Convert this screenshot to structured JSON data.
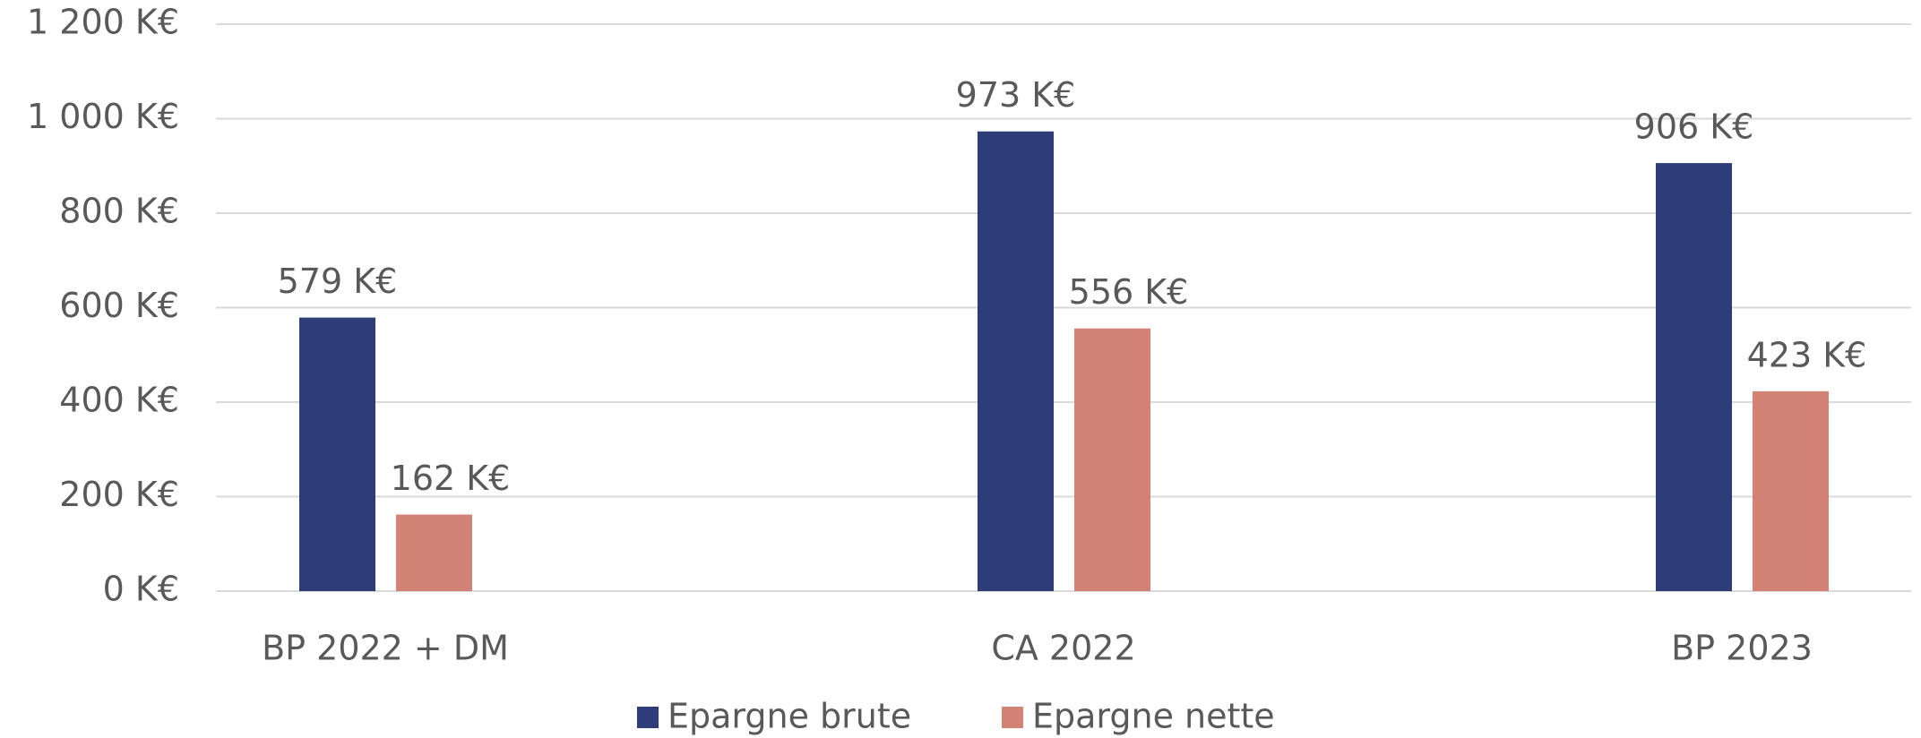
{
  "chart_data": {
    "type": "bar",
    "categories": [
      "BP 2022 + DM",
      "CA 2022",
      "BP 2023"
    ],
    "series": [
      {
        "name": "Epargne brute",
        "color": "#2e3d7a",
        "values": [
          579,
          973,
          906
        ],
        "value_labels": [
          "579 K€",
          "973 K€",
          "906 K€"
        ]
      },
      {
        "name": "Epargne nette",
        "color": "#d38276",
        "values": [
          162,
          556,
          423
        ],
        "value_labels": [
          "162 K€",
          "556 K€",
          "423 K€"
        ]
      }
    ],
    "ylim": [
      0,
      1200
    ],
    "yticks": [
      {
        "value": 0,
        "label": "0 K€"
      },
      {
        "value": 200,
        "label": "200 K€"
      },
      {
        "value": 400,
        "label": "400 K€"
      },
      {
        "value": 600,
        "label": "600 K€"
      },
      {
        "value": 800,
        "label": "800 K€"
      },
      {
        "value": 1000,
        "label": "1 000 K€"
      },
      {
        "value": 1200,
        "label": "1 200 K€"
      }
    ],
    "grid": true,
    "legend": "bottom"
  }
}
